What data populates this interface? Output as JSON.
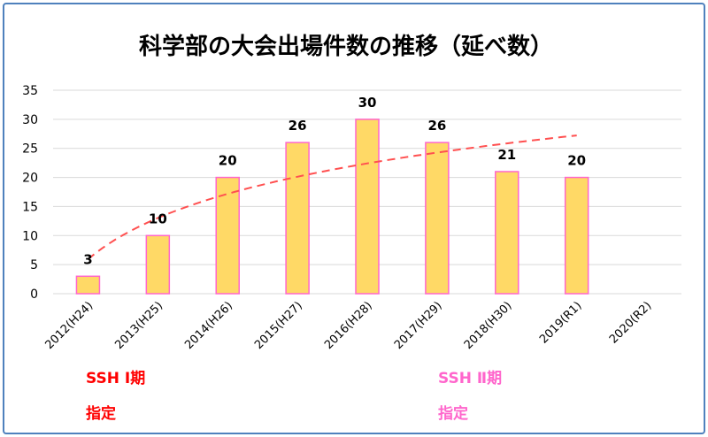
{
  "chart_data": {
    "type": "bar",
    "title": "科学部の大会出場件数の推移（延べ数）",
    "categories": [
      "2012(H24)",
      "2013(H25)",
      "2014(H26)",
      "2015(H27)",
      "2016(H28)",
      "2017(H29)",
      "2018(H30)",
      "2019(R1)",
      "2020(R2)"
    ],
    "values": [
      3,
      10,
      20,
      26,
      30,
      26,
      21,
      20,
      null
    ],
    "data_labels": [
      "3",
      "10",
      "20",
      "26",
      "30",
      "26",
      "21",
      "20",
      ""
    ],
    "ylim": [
      0,
      35
    ],
    "yticks": [
      0,
      5,
      10,
      15,
      20,
      25,
      30,
      35
    ],
    "grid": true,
    "trendline": {
      "style": "dashed",
      "type": "logarithmic",
      "shown": true
    },
    "annotations": [
      {
        "line1": "SSH Ⅰ期",
        "line2": "指定",
        "color": "#ff0000"
      },
      {
        "line1": "SSH Ⅱ期",
        "line2": "指定",
        "color": "#ff66cc"
      }
    ],
    "colors": {
      "bar_fill": "#ffd966",
      "bar_stroke": "#ff66cc",
      "trend": "#ff5050",
      "grid": "#d9d9d9"
    }
  }
}
